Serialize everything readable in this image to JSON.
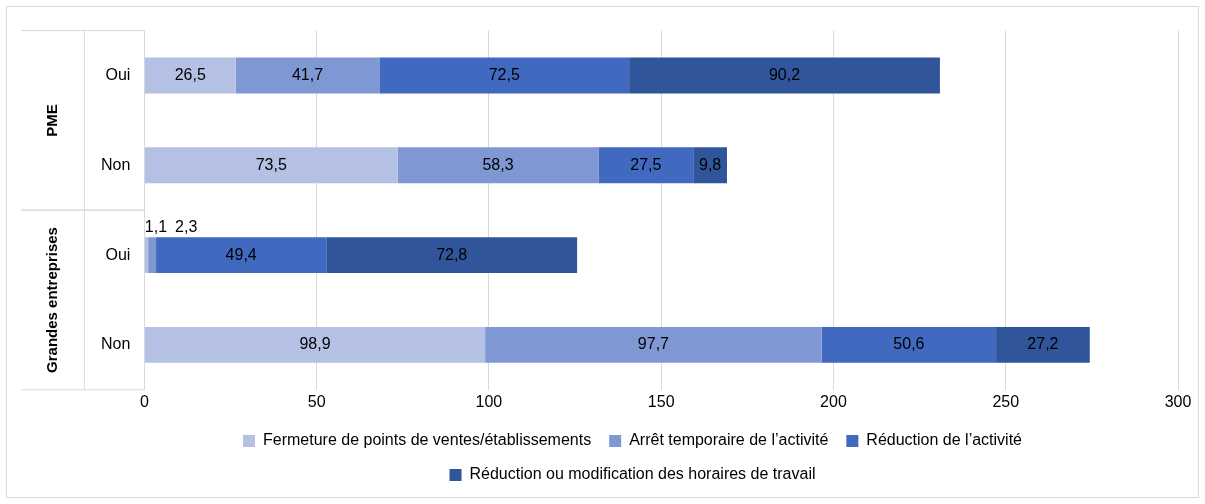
{
  "chart_data": {
    "type": "bar",
    "orientation": "horizontal",
    "stacked": true,
    "categories": [
      "Oui",
      "Non",
      "Oui",
      "Non"
    ],
    "series": [
      {
        "name": "Fermeture de points de ventes/établissements",
        "color": "#b4c0e4",
        "values": [
          26.5,
          73.5,
          1.1,
          98.9
        ],
        "value_labels": [
          "26,5",
          "73,5",
          "1,1",
          "98,9"
        ]
      },
      {
        "name": "Arrêt temporaire de l’activité",
        "color": "#7f98d4",
        "values": [
          41.7,
          58.3,
          2.3,
          97.7
        ],
        "value_labels": [
          "41,7",
          "58,3",
          "2,3",
          "97,7"
        ]
      },
      {
        "name": "Réduction de l’activité",
        "color": "#4169bf",
        "values": [
          72.5,
          27.5,
          49.4,
          50.6
        ],
        "value_labels": [
          "72,5",
          "27,5",
          "49,4",
          "50,6"
        ]
      },
      {
        "name": "Réduction ou modification des horaires de travail",
        "color": "#30559a",
        "values": [
          90.2,
          9.8,
          72.8,
          27.2
        ],
        "value_labels": [
          "90,2",
          "9,8",
          "72,8",
          "27,2"
        ]
      }
    ],
    "annotations": [
      "PME",
      "Grandes entreprises"
    ],
    "xlim": [
      0,
      300
    ],
    "xticks": [
      0,
      50,
      100,
      150,
      200,
      250,
      300
    ],
    "grid": "x",
    "legend": "bottom"
  }
}
